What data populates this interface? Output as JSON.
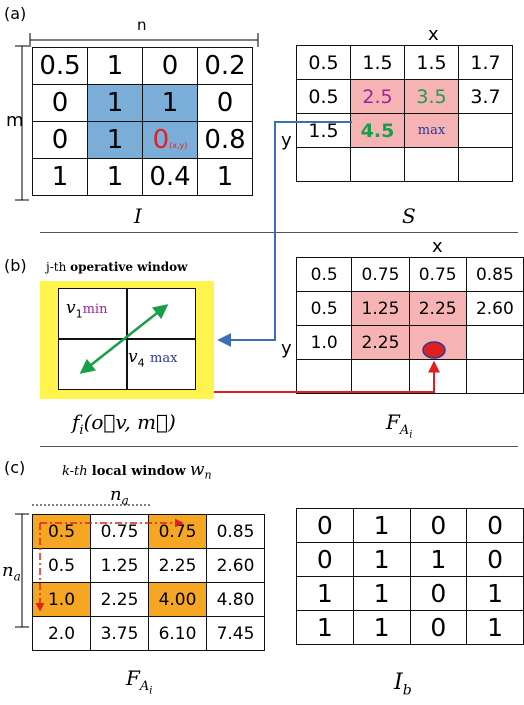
{
  "panel_a": {
    "tag": "(a)",
    "I_label_n": "n",
    "I_label_m": "m",
    "I_caption": "I",
    "I_cells": [
      [
        "0.5",
        "1",
        "0",
        "0.2"
      ],
      [
        "0",
        "1",
        "1",
        "0"
      ],
      [
        "0",
        "1",
        "0",
        "0.8"
      ],
      [
        "1",
        "1",
        "0.4",
        "1"
      ]
    ],
    "I_xy_sub": "(x,y)",
    "S_label_x": "x",
    "S_label_y": "y",
    "S_caption": "S",
    "S_cells": [
      [
        "0.5",
        "1.5",
        "1.5",
        "1.7"
      ],
      [
        "0.5",
        "2.5",
        "3.5",
        "3.7"
      ],
      [
        "1.5",
        "4.5",
        "max",
        ""
      ],
      [
        "",
        "",
        "",
        ""
      ]
    ]
  },
  "panel_b": {
    "tag": "(b)",
    "window_prefix": "j-th",
    "window_title": "operative window",
    "v1": "v",
    "v1_sub": "1",
    "v1_tag": "min",
    "v4": "v",
    "v4_sub": "4",
    "v4_tag": "max",
    "func_caption": "f",
    "func_sub": "i",
    "func_args": "(o⃗v, m⃗)",
    "F_label_x": "x",
    "F_label_y": "y",
    "F_caption": "F",
    "F_sub": "A",
    "F_subsub": "i",
    "F_cells": [
      [
        "0.5",
        "0.75",
        "0.75",
        "0.85"
      ],
      [
        "0.5",
        "1.25",
        "2.25",
        "2.60"
      ],
      [
        "1.0",
        "2.25",
        "",
        ""
      ],
      [
        "",
        "",
        "",
        ""
      ]
    ]
  },
  "panel_c": {
    "tag": "(c)",
    "window_prefix": "k-th",
    "window_title": "local window",
    "window_symbol": "w",
    "window_symbol_sub": "n",
    "na_top": "n",
    "na_top_sub": "a",
    "na_left": "n",
    "na_left_sub": "a",
    "F_caption": "F",
    "F_sub": "A",
    "F_subsub": "i",
    "F_cells": [
      [
        "0.5",
        "0.75",
        "0.75",
        "0.85"
      ],
      [
        "0.5",
        "1.25",
        "2.25",
        "2.60"
      ],
      [
        "1.0",
        "2.25",
        "4.00",
        "4.80"
      ],
      [
        "2.0",
        "3.75",
        "6.10",
        "7.45"
      ]
    ],
    "Ib_caption": "I",
    "Ib_sub": "b",
    "Ib_cells": [
      [
        "0",
        "1",
        "0",
        "0"
      ],
      [
        "0",
        "1",
        "1",
        "0"
      ],
      [
        "1",
        "1",
        "0",
        "1"
      ],
      [
        "1",
        "1",
        "0",
        "1"
      ]
    ]
  },
  "colors": {
    "blue_highlight": "#7aaed8",
    "pink_highlight": "#f5b3b3",
    "orange_highlight": "#f5a623",
    "red": "#e02020",
    "green": "#1a9e4a",
    "arrow_blue": "#3a6fb5",
    "yellow": "#fff34d",
    "magenta": "#a020a0",
    "navy": "#2a3a9a"
  }
}
